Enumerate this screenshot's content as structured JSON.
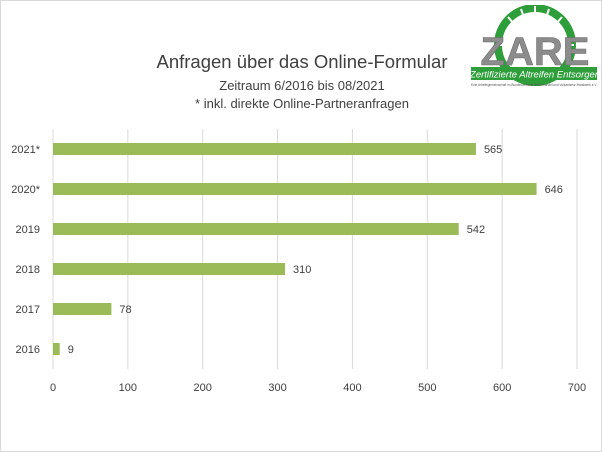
{
  "chart_data": {
    "type": "bar",
    "orientation": "horizontal",
    "title": "Anfragen über das Online-Formular",
    "subtitle": "Zeitraum 6/2016 bis 08/2021",
    "note": "* inkl. direkte Online-Partneranfragen",
    "categories": [
      "2021*",
      "2020*",
      "2019",
      "2018",
      "2017",
      "2016"
    ],
    "values": [
      565,
      646,
      542,
      310,
      78,
      9
    ],
    "xlim": [
      0,
      700
    ],
    "xticks": [
      0,
      100,
      200,
      300,
      400,
      500,
      600,
      700
    ],
    "grid": true,
    "data_labels": true,
    "bar_color": "#9bbb59"
  },
  "logo": {
    "letters": "ZARE",
    "tagline": "Zertifizierte Altreifen Entsorger",
    "fineprint": "Eine Arbeitsgemeinschaft im Bundesverband Reifenhandel und Vulkaniseur-Handwerk e.V.",
    "green": "#2e9e3a"
  }
}
